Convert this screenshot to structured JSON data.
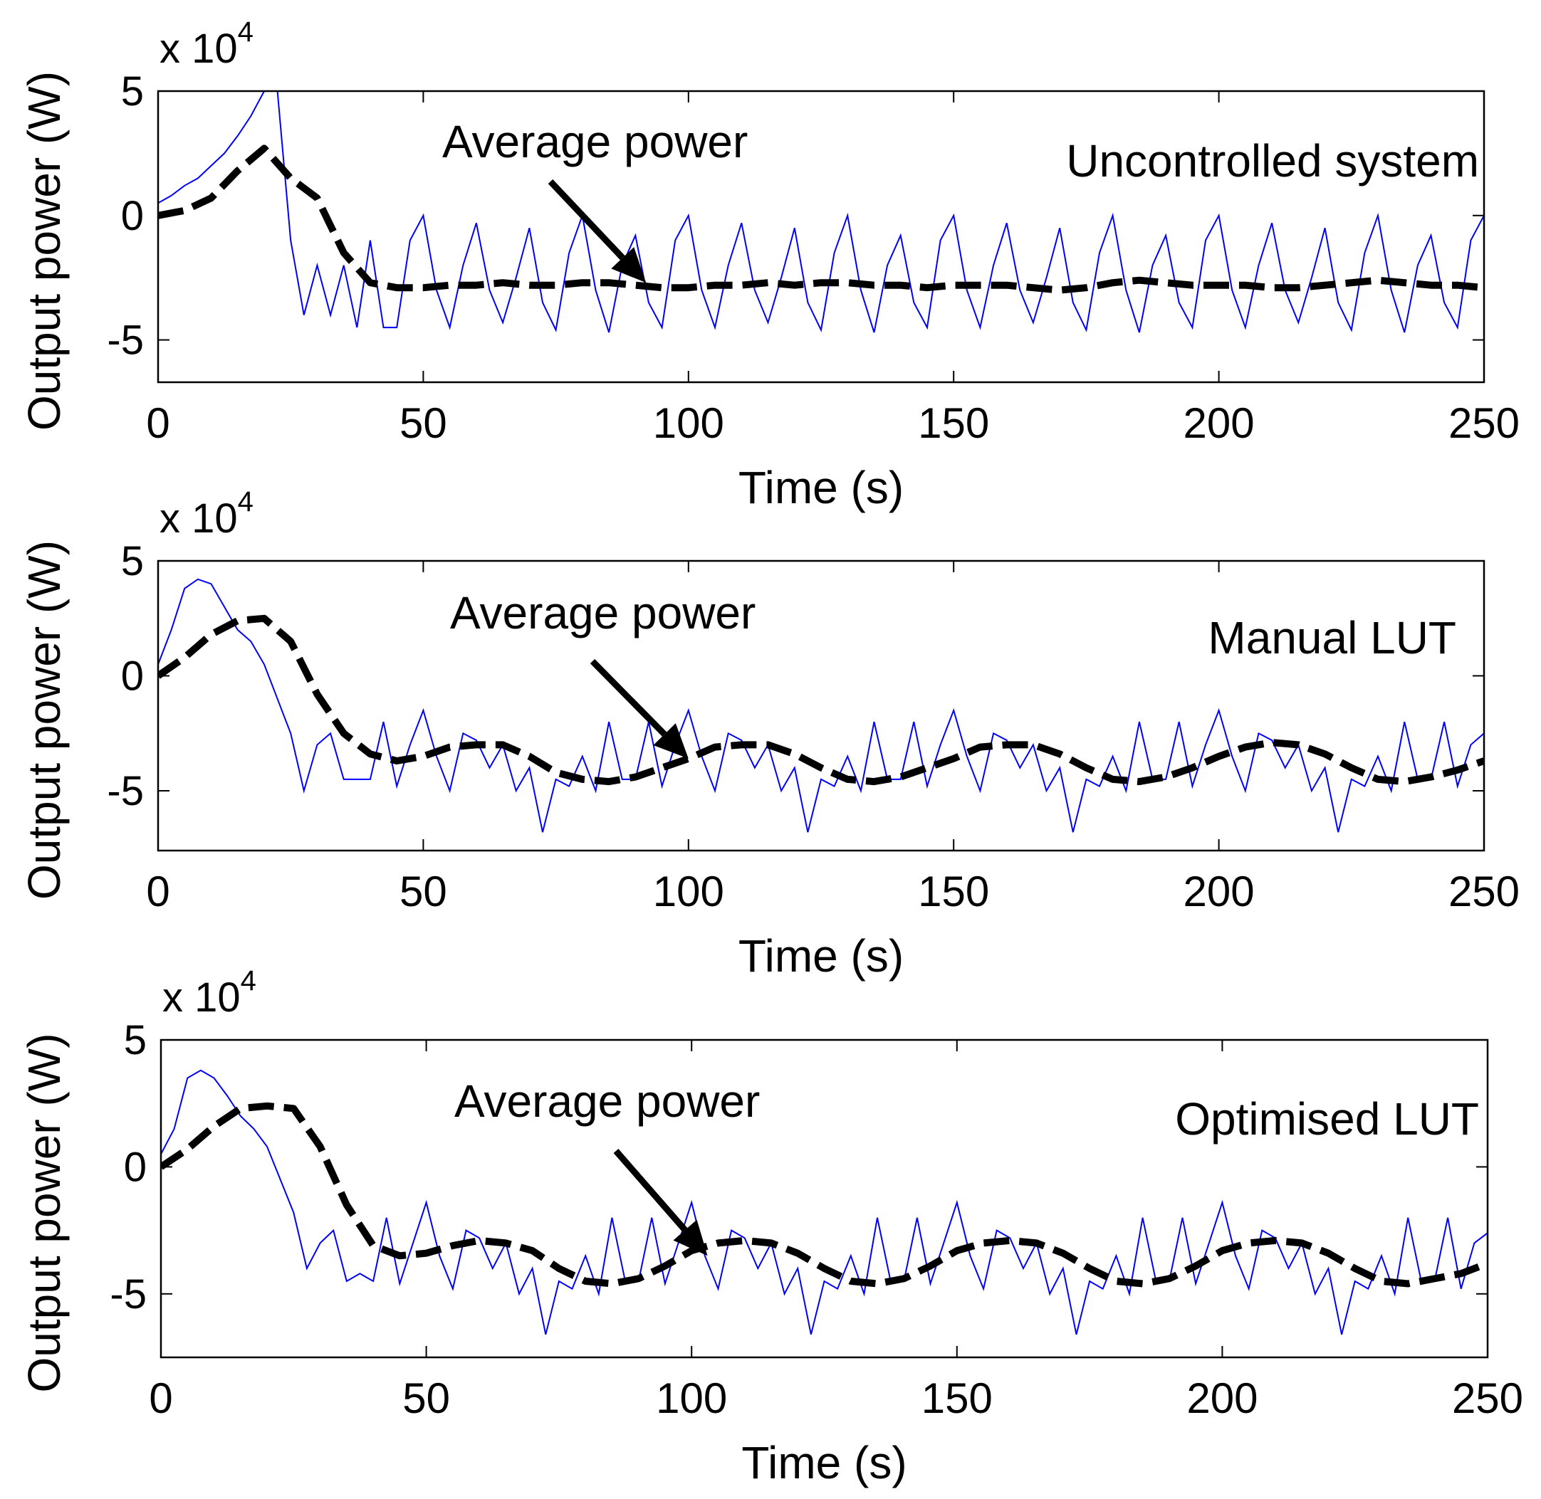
{
  "chart_data": [
    {
      "type": "line",
      "title": "Uncontrolled system",
      "xlabel": "Time (s)",
      "ylabel": "Output power (W)",
      "y_multiplier": "x 10",
      "y_exponent": "4",
      "xlim": [
        0,
        250
      ],
      "ylim": [
        -6.7,
        5
      ],
      "xticks": [
        0,
        50,
        100,
        150,
        200,
        250
      ],
      "yticks": [
        -5,
        0,
        5
      ],
      "ytick_labels": [
        "-5",
        "0",
        "5"
      ],
      "grid": false,
      "annotation": {
        "text": "Average power",
        "arrow_to": [
          92,
          -2.7
        ]
      },
      "series": [
        {
          "name": "Output power",
          "color": "#0000ff",
          "style": "solid",
          "x_step": 2.5,
          "values": [
            0.5,
            0.8,
            1.2,
            1.5,
            2,
            2.5,
            3.2,
            4,
            5,
            5,
            -1,
            -4,
            -2,
            -4,
            -2,
            -4.5,
            -1,
            -4.5,
            -4.5,
            -1,
            0,
            -3,
            -4.5,
            -2,
            -0.3,
            -3,
            -4.3,
            -2.5,
            -0.5,
            -3.5,
            -4.6,
            -1.5,
            0,
            -3,
            -4.7,
            -2,
            -0.8,
            -3.5,
            -4.5,
            -1,
            0,
            -3,
            -4.5,
            -2,
            -0.3,
            -3,
            -4.3,
            -2.5,
            -0.5,
            -3.5,
            -4.6,
            -1.5,
            0,
            -3,
            -4.7,
            -2,
            -0.8,
            -3.5,
            -4.5,
            -1,
            0,
            -3,
            -4.5,
            -2,
            -0.3,
            -3,
            -4.3,
            -2.5,
            -0.5,
            -3.5,
            -4.6,
            -1.5,
            0,
            -3,
            -4.7,
            -2,
            -0.8,
            -3.5,
            -4.5,
            -1,
            0,
            -3,
            -4.5,
            -2,
            -0.3,
            -3,
            -4.3,
            -2.5,
            -0.5,
            -3.5,
            -4.6,
            -1.5,
            0,
            -3,
            -4.7,
            -2,
            -0.8,
            -3.5,
            -4.5,
            -1,
            0,
            -3,
            -0.5
          ]
        },
        {
          "name": "Average power",
          "color": "#000000",
          "style": "dashed",
          "x_step": 5,
          "values": [
            0,
            0.2,
            0.7,
            1.8,
            2.7,
            1.5,
            0.7,
            -1.5,
            -2.7,
            -2.9,
            -2.9,
            -2.8,
            -2.8,
            -2.7,
            -2.8,
            -2.8,
            -2.7,
            -2.7,
            -2.8,
            -2.9,
            -2.9,
            -2.8,
            -2.8,
            -2.7,
            -2.8,
            -2.7,
            -2.7,
            -2.8,
            -2.8,
            -2.9,
            -2.8,
            -2.8,
            -2.8,
            -2.9,
            -3,
            -2.9,
            -2.7,
            -2.6,
            -2.7,
            -2.8,
            -2.8,
            -2.8,
            -2.9,
            -2.9,
            -2.8,
            -2.7,
            -2.6,
            -2.7,
            -2.8,
            -2.8,
            -2.9
          ]
        }
      ]
    },
    {
      "type": "line",
      "title": "Manual LUT",
      "xlabel": "Time (s)",
      "ylabel": "Output power (W)",
      "y_multiplier": "x 10",
      "y_exponent": "4",
      "xlim": [
        0,
        250
      ],
      "ylim": [
        -7.6,
        5
      ],
      "xticks": [
        0,
        50,
        100,
        150,
        200,
        250
      ],
      "yticks": [
        -5,
        0,
        5
      ],
      "ytick_labels": [
        "-5",
        "0",
        "5"
      ],
      "grid": false,
      "annotation": {
        "text": "Average power",
        "arrow_to": [
          100,
          -3.6
        ]
      },
      "series": [
        {
          "name": "Output power",
          "color": "#0000ff",
          "style": "solid",
          "x_step": 2.5,
          "values": [
            0.5,
            2,
            3.8,
            4.2,
            4,
            3,
            2,
            1.5,
            0.5,
            -1,
            -2.5,
            -5,
            -3,
            -2.5,
            -4.5,
            -4.5,
            -4.5,
            -2,
            -4.8,
            -3,
            -1.5,
            -3.5,
            -5,
            -2.5,
            -2.8,
            -4,
            -3,
            -5,
            -4,
            -6.8,
            -4.5,
            -4.8,
            -3.5,
            -5,
            -2,
            -4.5,
            -4.5,
            -2,
            -4.8,
            -3,
            -1.5,
            -3.5,
            -5,
            -2.5,
            -2.8,
            -4,
            -3,
            -5,
            -4,
            -6.8,
            -4.5,
            -4.8,
            -3.5,
            -5,
            -2,
            -4.5,
            -4.5,
            -2,
            -4.8,
            -3,
            -1.5,
            -3.5,
            -5,
            -2.5,
            -2.8,
            -4,
            -3,
            -5,
            -4,
            -6.8,
            -4.5,
            -4.8,
            -3.5,
            -5,
            -2,
            -4.5,
            -4.5,
            -2,
            -4.8,
            -3,
            -1.5,
            -3.5,
            -5,
            -2.5,
            -2.8,
            -4,
            -3,
            -5,
            -4,
            -6.8,
            -4.5,
            -4.8,
            -3.5,
            -5,
            -2,
            -4.5,
            -4.5,
            -2,
            -4.8,
            -3,
            -2.5
          ]
        },
        {
          "name": "Average power",
          "color": "#000000",
          "style": "dashed",
          "x_step": 5,
          "values": [
            0,
            0.8,
            1.8,
            2.4,
            2.5,
            1.5,
            -0.8,
            -2.5,
            -3.4,
            -3.7,
            -3.5,
            -3.1,
            -3,
            -3,
            -3.5,
            -4.2,
            -4.5,
            -4.6,
            -4.4,
            -4,
            -3.6,
            -3.1,
            -3,
            -3,
            -3.4,
            -4,
            -4.5,
            -4.6,
            -4.4,
            -4,
            -3.6,
            -3.1,
            -3,
            -3,
            -3.4,
            -4,
            -4.5,
            -4.6,
            -4.4,
            -4,
            -3.5,
            -3.1,
            -2.9,
            -3,
            -3.4,
            -4,
            -4.5,
            -4.6,
            -4.4,
            -4.1,
            -3.7
          ]
        }
      ]
    },
    {
      "type": "line",
      "title": "Optimised LUT",
      "xlabel": "Time (s)",
      "ylabel": "Output power (W)",
      "y_multiplier": "x 10",
      "y_exponent": "4",
      "xlim": [
        0,
        250
      ],
      "ylim": [
        -7.5,
        5
      ],
      "xticks": [
        0,
        50,
        100,
        150,
        200,
        250
      ],
      "yticks": [
        -5,
        0,
        5
      ],
      "ytick_labels": [
        "-5",
        "0",
        "5"
      ],
      "grid": false,
      "annotation": {
        "text": "Average power",
        "arrow_to": [
          103,
          -3.5
        ]
      },
      "series": [
        {
          "name": "Output power",
          "color": "#0000ff",
          "style": "solid",
          "x_step": 2.5,
          "values": [
            0.5,
            1.5,
            3.5,
            3.8,
            3.5,
            2.8,
            2,
            1.5,
            0.8,
            -0.5,
            -1.8,
            -4,
            -3,
            -2.5,
            -4.5,
            -4.2,
            -4.5,
            -2,
            -4.6,
            -3,
            -1.4,
            -3.5,
            -4.8,
            -2.5,
            -2.8,
            -4,
            -3,
            -5,
            -4,
            -6.6,
            -4.5,
            -4.8,
            -3.5,
            -5,
            -2,
            -4.5,
            -4.5,
            -2,
            -4.6,
            -3,
            -1.4,
            -3.5,
            -4.8,
            -2.5,
            -2.8,
            -4,
            -3,
            -5,
            -4,
            -6.6,
            -4.5,
            -4.8,
            -3.5,
            -5,
            -2,
            -4.5,
            -4.5,
            -2,
            -4.6,
            -3,
            -1.4,
            -3.5,
            -4.8,
            -2.5,
            -2.8,
            -4,
            -3,
            -5,
            -4,
            -6.6,
            -4.5,
            -4.8,
            -3.5,
            -5,
            -2,
            -4.5,
            -4.5,
            -2,
            -4.6,
            -3,
            -1.4,
            -3.5,
            -4.8,
            -2.5,
            -2.8,
            -4,
            -3,
            -5,
            -4,
            -6.6,
            -4.5,
            -4.8,
            -3.5,
            -5,
            -2,
            -4.5,
            -4.5,
            -2,
            -4.8,
            -3,
            -2.6
          ]
        },
        {
          "name": "Average power",
          "color": "#000000",
          "style": "dashed",
          "x_step": 5,
          "values": [
            0,
            0.7,
            1.6,
            2.3,
            2.4,
            2.3,
            0.8,
            -1.5,
            -3.1,
            -3.5,
            -3.4,
            -3.1,
            -2.9,
            -3,
            -3.3,
            -4,
            -4.5,
            -4.6,
            -4.4,
            -3.9,
            -3.3,
            -3,
            -2.9,
            -3,
            -3.4,
            -4,
            -4.5,
            -4.6,
            -4.4,
            -3.9,
            -3.3,
            -3,
            -2.9,
            -3,
            -3.4,
            -4,
            -4.5,
            -4.6,
            -4.4,
            -3.9,
            -3.3,
            -3,
            -2.9,
            -3,
            -3.4,
            -4,
            -4.5,
            -4.6,
            -4.4,
            -4.2,
            -3.8
          ]
        }
      ]
    }
  ]
}
